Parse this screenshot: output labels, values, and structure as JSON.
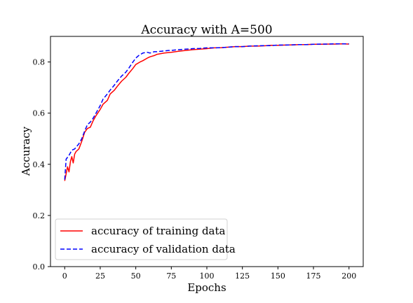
{
  "chart_data": {
    "type": "line",
    "title": "Accuracy with A=500",
    "xlabel": "Epochs",
    "ylabel": "Accuracy",
    "xlim": [
      -10,
      210
    ],
    "ylim": [
      0,
      0.9
    ],
    "xticks": [
      0,
      25,
      50,
      75,
      100,
      125,
      150,
      175,
      200
    ],
    "xtick_labels": [
      "0",
      "25",
      "50",
      "75",
      "100",
      "125",
      "150",
      "175",
      "200"
    ],
    "yticks": [
      0.0,
      0.2,
      0.4,
      0.6,
      0.8
    ],
    "ytick_labels": [
      "0.0",
      "0.2",
      "0.4",
      "0.6",
      "0.8"
    ],
    "grid": false,
    "legend_position": "bottom-left",
    "series": [
      {
        "name": "accuracy of training data",
        "color": "#ff0000",
        "linestyle": "solid",
        "x": [
          0,
          2,
          3,
          4,
          5,
          6,
          7,
          8,
          10,
          12,
          14,
          16,
          18,
          20,
          22,
          25,
          27,
          30,
          32,
          35,
          37,
          40,
          43,
          45,
          48,
          50,
          53,
          55,
          58,
          60,
          63,
          65,
          70,
          75,
          80,
          85,
          90,
          95,
          100,
          105,
          110,
          115,
          120,
          125,
          130,
          135,
          140,
          145,
          150,
          155,
          160,
          165,
          170,
          175,
          180,
          185,
          190,
          195,
          200
        ],
        "y": [
          0.335,
          0.39,
          0.37,
          0.41,
          0.43,
          0.405,
          0.44,
          0.45,
          0.46,
          0.49,
          0.525,
          0.54,
          0.545,
          0.57,
          0.59,
          0.615,
          0.635,
          0.65,
          0.675,
          0.69,
          0.705,
          0.725,
          0.74,
          0.755,
          0.775,
          0.79,
          0.8,
          0.805,
          0.815,
          0.82,
          0.825,
          0.83,
          0.835,
          0.838,
          0.842,
          0.845,
          0.848,
          0.85,
          0.852,
          0.855,
          0.856,
          0.858,
          0.86,
          0.86,
          0.862,
          0.862,
          0.863,
          0.865,
          0.865,
          0.866,
          0.867,
          0.868,
          0.868,
          0.869,
          0.869,
          0.87,
          0.87,
          0.871,
          0.87
        ]
      },
      {
        "name": "accuracy of validation data",
        "color": "#0000ff",
        "linestyle": "dashed",
        "x": [
          0,
          1,
          3,
          5,
          7,
          10,
          12,
          14,
          16,
          18,
          20,
          22,
          25,
          27,
          30,
          32,
          35,
          37,
          40,
          43,
          45,
          48,
          50,
          52,
          55,
          58,
          60,
          63,
          65,
          68,
          70,
          73,
          75,
          78,
          80,
          85,
          90,
          95,
          100,
          105,
          110,
          115,
          120,
          125,
          130,
          135,
          140,
          145,
          150,
          155,
          160,
          165,
          170,
          175,
          180,
          185,
          190,
          195,
          200
        ],
        "y": [
          0.34,
          0.42,
          0.435,
          0.455,
          0.46,
          0.48,
          0.5,
          0.53,
          0.555,
          0.565,
          0.58,
          0.6,
          0.63,
          0.655,
          0.675,
          0.69,
          0.71,
          0.725,
          0.745,
          0.76,
          0.775,
          0.8,
          0.815,
          0.825,
          0.835,
          0.838,
          0.835,
          0.84,
          0.84,
          0.842,
          0.843,
          0.845,
          0.845,
          0.847,
          0.848,
          0.85,
          0.852,
          0.853,
          0.855,
          0.855,
          0.856,
          0.858,
          0.86,
          0.86,
          0.862,
          0.863,
          0.864,
          0.864,
          0.866,
          0.866,
          0.867,
          0.868,
          0.868,
          0.869,
          0.87,
          0.87,
          0.871,
          0.871,
          0.871
        ]
      }
    ]
  }
}
